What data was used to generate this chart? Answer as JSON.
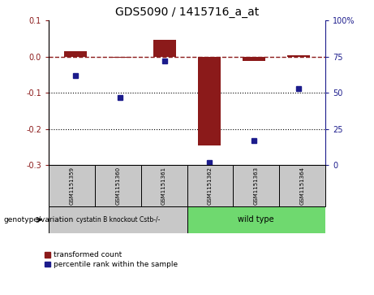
{
  "title": "GDS5090 / 1415716_a_at",
  "samples": [
    "GSM1151359",
    "GSM1151360",
    "GSM1151361",
    "GSM1151362",
    "GSM1151363",
    "GSM1151364"
  ],
  "red_values": [
    0.015,
    -0.003,
    0.047,
    -0.245,
    -0.012,
    0.005
  ],
  "blue_values_pct": [
    62,
    47,
    72,
    2,
    17,
    53
  ],
  "group1_label": "cystatin B knockout Cstb-/-",
  "group1_samples": [
    0,
    1,
    2
  ],
  "group2_label": "wild type",
  "group2_samples": [
    3,
    4,
    5
  ],
  "left_ylim": [
    -0.3,
    0.1
  ],
  "right_ylim": [
    0,
    100
  ],
  "left_yticks": [
    -0.3,
    -0.2,
    -0.1,
    0.0,
    0.1
  ],
  "right_yticks": [
    0,
    25,
    50,
    75,
    100
  ],
  "red_color": "#8B1A1A",
  "blue_color": "#1C1C8C",
  "bar_width": 0.5,
  "dotted_lines": [
    -0.1,
    -0.2
  ],
  "legend_red": "transformed count",
  "legend_blue": "percentile rank within the sample",
  "genotype_label": "genotype/variation",
  "sample_box_color": "#C8C8C8",
  "group1_color": "#C8C8C8",
  "group2_color": "#6FD96F",
  "right_ytick_labels": [
    "0",
    "25",
    "50",
    "75",
    "100%"
  ]
}
